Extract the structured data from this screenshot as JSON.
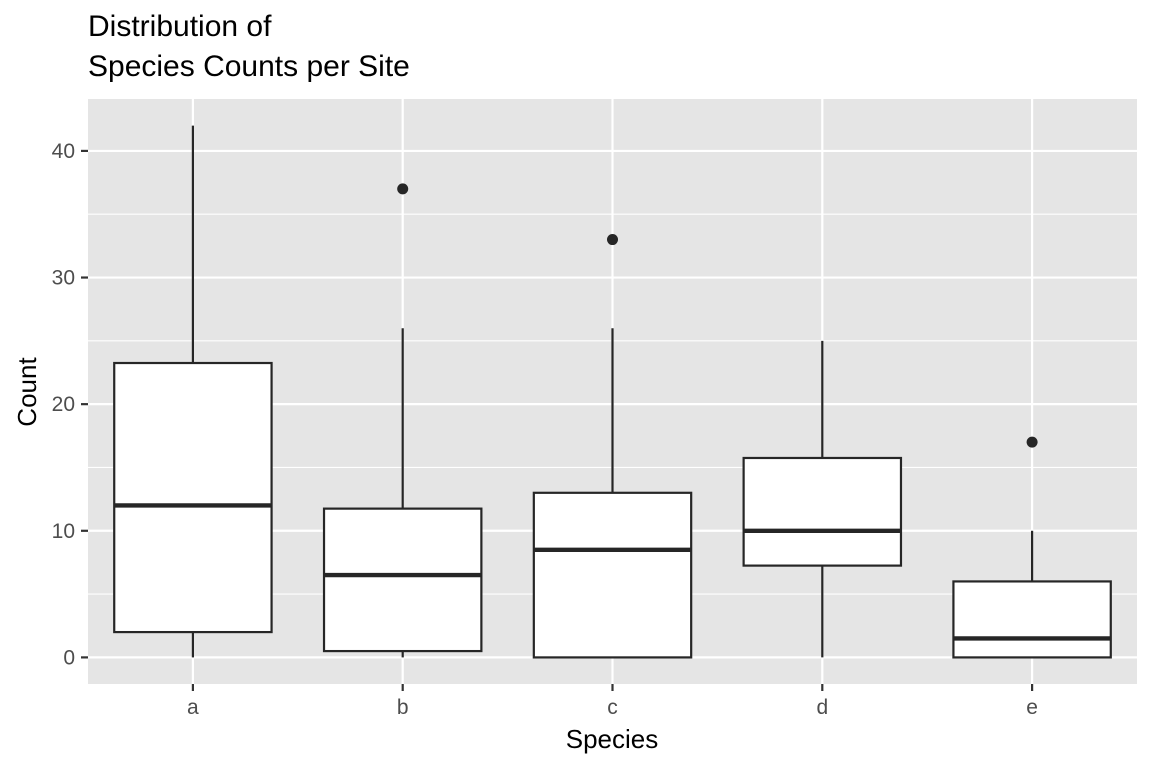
{
  "chart_data": {
    "type": "boxplot",
    "title": [
      "Distribution of",
      "Species Counts per Site"
    ],
    "xlabel": "Species",
    "ylabel": "Count",
    "categories": [
      "a",
      "b",
      "c",
      "d",
      "e"
    ],
    "y_ticks": [
      0,
      10,
      20,
      30,
      40
    ],
    "ylim": [
      -2.1,
      44.1
    ],
    "grid": true,
    "legend": "none",
    "boxes": [
      {
        "category": "a",
        "lower_whisker": 0,
        "q1": 2,
        "median": 12,
        "q3": 23.25,
        "upper_whisker": 42,
        "outliers": []
      },
      {
        "category": "b",
        "lower_whisker": 0,
        "q1": 0.5,
        "median": 6.5,
        "q3": 11.75,
        "upper_whisker": 26,
        "outliers": [
          37
        ]
      },
      {
        "category": "c",
        "lower_whisker": 0,
        "q1": 0,
        "median": 8.5,
        "q3": 13,
        "upper_whisker": 26,
        "outliers": [
          33
        ]
      },
      {
        "category": "d",
        "lower_whisker": 0,
        "q1": 7.25,
        "median": 10,
        "q3": 15.75,
        "upper_whisker": 25,
        "outliers": []
      },
      {
        "category": "e",
        "lower_whisker": 0,
        "q1": 0,
        "median": 1.5,
        "q3": 6,
        "upper_whisker": 10,
        "outliers": [
          17
        ]
      }
    ],
    "colors": {
      "panel_background": "#e5e5e5",
      "grid": "#ffffff",
      "box_fill": "#ffffff",
      "box_stroke": "#262626",
      "tick_label": "#4d4d4d"
    }
  }
}
